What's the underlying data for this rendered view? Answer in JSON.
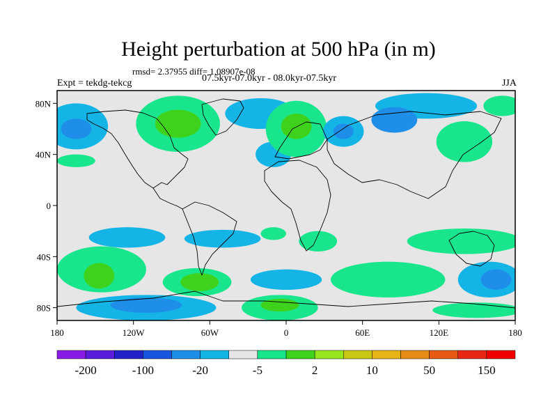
{
  "title": "Height perturbation at 500 hPa (in m)",
  "stats": "rmsd= 2.37955 diff= 1.08907e-08",
  "expt": "Expt = tekdg-tekcg",
  "periods": "07.5kyr-07.0kyr - 08.0kyr-07.5kyr",
  "season": "JJA",
  "axes": {
    "lat_labels": [
      "80N",
      "40N",
      "0",
      "40S",
      "80S"
    ],
    "lon_labels": [
      "180",
      "120W",
      "60W",
      "0",
      "60E",
      "120E",
      "180"
    ]
  },
  "colorbar": {
    "colors": [
      "#8a1be6",
      "#5a1ddb",
      "#2222c8",
      "#1655dd",
      "#1e8ee8",
      "#14b4e6",
      "#e6e6e6",
      "#19e68c",
      "#3ed21c",
      "#96e61c",
      "#c8c814",
      "#e6b414",
      "#e68c14",
      "#e65a14",
      "#e62814",
      "#f00000"
    ],
    "labels": [
      "-200",
      "-100",
      "-20",
      "-5",
      "2",
      "10",
      "50",
      "150"
    ]
  },
  "map_data": {
    "type": "filled-contour",
    "projection": "cylindrical-equidistant",
    "lon_range": [
      -180,
      180
    ],
    "lat_range": [
      -90,
      90
    ],
    "background_color": "#e6e6e6",
    "regions": [
      {
        "lon": -165,
        "lat": 62,
        "rx": 25,
        "ry": 18,
        "color": "#14b4e6"
      },
      {
        "lon": -165,
        "lat": 60,
        "rx": 12,
        "ry": 8,
        "color": "#1e8ee8"
      },
      {
        "lon": -85,
        "lat": 64,
        "rx": 33,
        "ry": 22,
        "color": "#19e68c"
      },
      {
        "lon": -85,
        "lat": 64,
        "rx": 18,
        "ry": 11,
        "color": "#3ed21c"
      },
      {
        "lon": -20,
        "lat": 72,
        "rx": 28,
        "ry": 12,
        "color": "#14b4e6"
      },
      {
        "lon": -10,
        "lat": 40,
        "rx": 14,
        "ry": 10,
        "color": "#14b4e6"
      },
      {
        "lon": 8,
        "lat": 60,
        "rx": 24,
        "ry": 22,
        "color": "#19e68c"
      },
      {
        "lon": 8,
        "lat": 62,
        "rx": 12,
        "ry": 10,
        "color": "#3ed21c"
      },
      {
        "lon": 45,
        "lat": 58,
        "rx": 16,
        "ry": 12,
        "color": "#14b4e6"
      },
      {
        "lon": 45,
        "lat": 58,
        "rx": 8,
        "ry": 6,
        "color": "#1e8ee8"
      },
      {
        "lon": 110,
        "lat": 78,
        "rx": 40,
        "ry": 10,
        "color": "#14b4e6"
      },
      {
        "lon": 85,
        "lat": 67,
        "rx": 18,
        "ry": 10,
        "color": "#1e8ee8"
      },
      {
        "lon": 140,
        "lat": 50,
        "rx": 22,
        "ry": 16,
        "color": "#19e68c"
      },
      {
        "lon": 170,
        "lat": 78,
        "rx": 15,
        "ry": 8,
        "color": "#19e68c"
      },
      {
        "lon": -165,
        "lat": 35,
        "rx": 15,
        "ry": 5,
        "color": "#19e68c"
      },
      {
        "lon": -125,
        "lat": -25,
        "rx": 30,
        "ry": 8,
        "color": "#14b4e6"
      },
      {
        "lon": -50,
        "lat": -26,
        "rx": 30,
        "ry": 7,
        "color": "#14b4e6"
      },
      {
        "lon": -10,
        "lat": -22,
        "rx": 10,
        "ry": 5,
        "color": "#19e68c"
      },
      {
        "lon": 25,
        "lat": -28,
        "rx": 15,
        "ry": 8,
        "color": "#19e68c"
      },
      {
        "lon": 140,
        "lat": -28,
        "rx": 45,
        "ry": 10,
        "color": "#19e68c"
      },
      {
        "lon": -145,
        "lat": -50,
        "rx": 35,
        "ry": 18,
        "color": "#19e68c"
      },
      {
        "lon": -147,
        "lat": -55,
        "rx": 12,
        "ry": 10,
        "color": "#3ed21c"
      },
      {
        "lon": -70,
        "lat": -60,
        "rx": 27,
        "ry": 11,
        "color": "#19e68c"
      },
      {
        "lon": -68,
        "lat": -60,
        "rx": 15,
        "ry": 7,
        "color": "#3ed21c"
      },
      {
        "lon": 0,
        "lat": -58,
        "rx": 28,
        "ry": 8,
        "color": "#14b4e6"
      },
      {
        "lon": 80,
        "lat": -58,
        "rx": 45,
        "ry": 14,
        "color": "#19e68c"
      },
      {
        "lon": 160,
        "lat": -58,
        "rx": 25,
        "ry": 14,
        "color": "#14b4e6"
      },
      {
        "lon": 165,
        "lat": -58,
        "rx": 12,
        "ry": 8,
        "color": "#1e8ee8"
      },
      {
        "lon": -110,
        "lat": -80,
        "rx": 55,
        "ry": 10,
        "color": "#14b4e6"
      },
      {
        "lon": -110,
        "lat": -78,
        "rx": 28,
        "ry": 6,
        "color": "#1e8ee8"
      },
      {
        "lon": -5,
        "lat": -80,
        "rx": 30,
        "ry": 10,
        "color": "#19e68c"
      },
      {
        "lon": -5,
        "lat": -78,
        "rx": 15,
        "ry": 5,
        "color": "#3ed21c"
      },
      {
        "lon": 150,
        "lat": -82,
        "rx": 35,
        "ry": 6,
        "color": "#19e68c"
      }
    ]
  }
}
